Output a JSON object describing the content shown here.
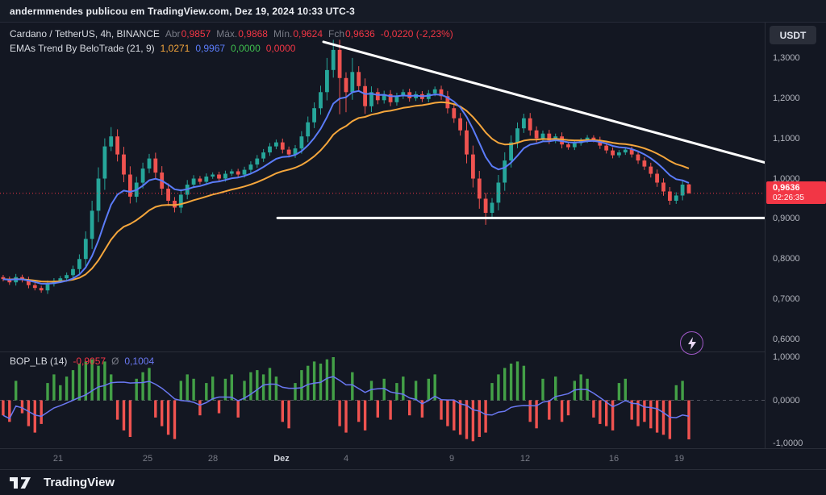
{
  "header": {
    "text": "andermmendes publicou em TradingView.com, Dez 19, 2024 10:33 UTC-3"
  },
  "symbol_legend": {
    "title": "Cardano / TetherUS, 4h, BINANCE",
    "ohlc": [
      {
        "label": "Abr",
        "value": "0,9857"
      },
      {
        "label": "Máx.",
        "value": "0,9868"
      },
      {
        "label": "Mín.",
        "value": "0,9624"
      },
      {
        "label": "Fch",
        "value": "0,9636"
      }
    ],
    "change": "-0,0220 (-2,23%)"
  },
  "ema_legend": {
    "title": "EMAs Trend By BeloTrade (21, 9)",
    "values": [
      {
        "text": "1,0271",
        "color": "#f5a63c"
      },
      {
        "text": "0,9967",
        "color": "#5b7cfa"
      },
      {
        "text": "0,0000",
        "color": "#3fbf4e"
      },
      {
        "text": "0,0000",
        "color": "#f23645"
      }
    ]
  },
  "bop_legend": {
    "title": "BOP_LB (14)",
    "value": "-0,9057",
    "avg_label": "Ø",
    "avg_value": "0,1004"
  },
  "price_axis": {
    "currency": "USDT",
    "ticks": [
      "1,3000",
      "1,2000",
      "1,1000",
      "1,0000",
      "0,9000",
      "0,8000",
      "0,7000",
      "0,6000"
    ],
    "tick_values": [
      1.3,
      1.2,
      1.1,
      1.0,
      0.9,
      0.8,
      0.7,
      0.6
    ],
    "last_price_label": "0,9636",
    "countdown": "02:26:35"
  },
  "bop_axis": {
    "ticks": [
      "1,0000",
      "0,0000",
      "-1,0000"
    ],
    "tick_values": [
      1,
      0,
      -1
    ]
  },
  "time_axis": {
    "labels": [
      {
        "text": "21",
        "pos": 0.076,
        "major": false
      },
      {
        "text": "25",
        "pos": 0.193,
        "major": false
      },
      {
        "text": "28",
        "pos": 0.278,
        "major": false
      },
      {
        "text": "Dez",
        "pos": 0.368,
        "major": true
      },
      {
        "text": "4",
        "pos": 0.453,
        "major": false
      },
      {
        "text": "9",
        "pos": 0.591,
        "major": false
      },
      {
        "text": "12",
        "pos": 0.687,
        "major": false
      },
      {
        "text": "16",
        "pos": 0.803,
        "major": false
      },
      {
        "text": "19",
        "pos": 0.888,
        "major": false
      }
    ]
  },
  "footer": {
    "brand": "TradingView"
  },
  "chart_data": {
    "type": "candlestick",
    "title": "Cardano / TetherUS, 4h, BINANCE",
    "price_range": [
      0.57,
      1.388
    ],
    "plot_fraction": 0.905,
    "first_open": 0.755,
    "closes": [
      0.75,
      0.742,
      0.755,
      0.748,
      0.735,
      0.728,
      0.722,
      0.738,
      0.746,
      0.752,
      0.76,
      0.775,
      0.8,
      0.85,
      0.92,
      1.0,
      1.08,
      1.105,
      1.06,
      1.01,
      0.955,
      0.99,
      1.025,
      1.05,
      1.015,
      0.975,
      0.945,
      0.928,
      0.96,
      0.985,
      1.0,
      0.992,
      1.005,
      1.01,
      1.0,
      1.012,
      1.018,
      1.01,
      1.022,
      1.035,
      1.05,
      1.065,
      1.08,
      1.09,
      1.072,
      1.06,
      1.075,
      1.105,
      1.14,
      1.175,
      1.215,
      1.27,
      1.32,
      1.25,
      1.215,
      1.265,
      1.23,
      1.18,
      1.215,
      1.195,
      1.21,
      1.19,
      1.205,
      1.215,
      1.2,
      1.21,
      1.198,
      1.212,
      1.222,
      1.205,
      1.175,
      1.15,
      1.12,
      1.06,
      1.0,
      0.95,
      0.915,
      0.94,
      0.99,
      1.045,
      1.09,
      1.125,
      1.15,
      1.12,
      1.1,
      1.112,
      1.095,
      1.105,
      1.085,
      1.078,
      1.088,
      1.095,
      1.102,
      1.096,
      1.082,
      1.07,
      1.058,
      1.065,
      1.072,
      1.06,
      1.045,
      1.03,
      1.012,
      0.99,
      0.968,
      0.945,
      0.958,
      0.985,
      0.9636
    ],
    "wick_overrides": [
      {
        "i": 16,
        "h": 1.1
      },
      {
        "i": 17,
        "h": 1.128
      },
      {
        "i": 20,
        "l": 0.938
      },
      {
        "i": 27,
        "l": 0.916
      },
      {
        "i": 51,
        "h": 1.3
      },
      {
        "i": 52,
        "h": 1.345
      },
      {
        "i": 53,
        "l": 1.16
      },
      {
        "i": 54,
        "l": 1.165
      },
      {
        "i": 55,
        "h": 1.3
      },
      {
        "i": 75,
        "l": 0.925
      },
      {
        "i": 76,
        "l": 0.885
      },
      {
        "i": 105,
        "l": 0.935
      }
    ],
    "last_candle": {
      "open": 0.9857,
      "high": 0.9868,
      "low": 0.9624,
      "close": 0.9636
    },
    "last_price": 0.9636,
    "emas": [
      {
        "period": 21,
        "color": "#f5a63c"
      },
      {
        "period": 9,
        "color": "#5b7cfa"
      }
    ],
    "trendlines": [
      {
        "x1": 0.423,
        "p1": 1.34,
        "x2": 1.0,
        "p2": 1.04
      },
      {
        "x1": 0.363,
        "p1": 0.902,
        "x2": 1.0,
        "p2": 0.902
      }
    ],
    "bop": {
      "period": 14,
      "avg_period": 14,
      "range": [
        -1,
        1
      ],
      "values": [
        -0.35,
        -0.5,
        0.45,
        -0.3,
        -0.6,
        -0.75,
        -0.55,
        0.4,
        0.6,
        0.35,
        0.55,
        0.7,
        0.85,
        0.9,
        0.95,
        0.8,
        0.9,
        0.6,
        -0.45,
        -0.7,
        -0.85,
        0.5,
        0.65,
        0.75,
        -0.4,
        -0.6,
        -0.8,
        -0.9,
        0.45,
        0.6,
        0.5,
        -0.35,
        0.4,
        0.55,
        -0.3,
        0.5,
        0.6,
        -0.4,
        0.45,
        0.65,
        0.7,
        0.6,
        0.75,
        0.55,
        -0.5,
        -0.65,
        0.4,
        0.7,
        0.8,
        0.9,
        0.85,
        0.95,
        1.0,
        -0.6,
        -0.75,
        0.65,
        -0.5,
        -0.7,
        0.45,
        -0.4,
        0.5,
        -0.45,
        0.4,
        0.55,
        -0.35,
        0.45,
        -0.4,
        0.5,
        0.6,
        -0.45,
        -0.6,
        -0.7,
        -0.8,
        -0.9,
        -0.95,
        -0.85,
        -0.75,
        0.4,
        0.6,
        0.75,
        0.85,
        0.9,
        0.8,
        -0.5,
        -0.65,
        0.5,
        -0.45,
        0.55,
        -0.5,
        -0.35,
        0.45,
        0.6,
        0.5,
        -0.4,
        -0.55,
        -0.6,
        -0.7,
        0.4,
        0.5,
        -0.45,
        -0.6,
        -0.5,
        -0.65,
        -0.75,
        -0.8,
        -0.9,
        0.35,
        0.45,
        -0.9057
      ]
    },
    "colors": {
      "up": "#26a69a",
      "down": "#ef5350",
      "bop_up": "#43a047",
      "bop_down": "#ef5350",
      "avg_line": "#6a78f2",
      "trendline": "#ffffff",
      "last_price_line": "#f23645",
      "zero_line": "#50535e"
    }
  }
}
